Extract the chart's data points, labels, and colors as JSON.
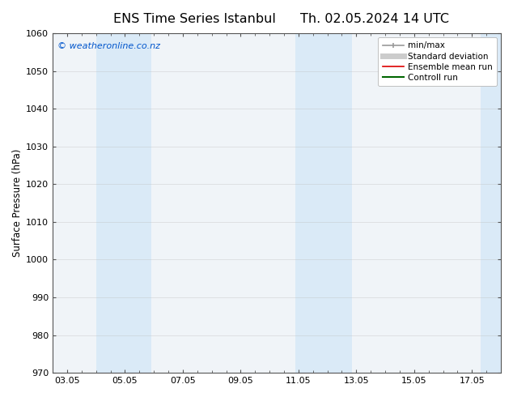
{
  "title_left": "ENS Time Series Istanbul",
  "title_right": "Th. 02.05.2024 14 UTC",
  "ylabel": "Surface Pressure (hPa)",
  "ylim": [
    970,
    1060
  ],
  "yticks": [
    970,
    980,
    990,
    1000,
    1010,
    1020,
    1030,
    1040,
    1050,
    1060
  ],
  "xtick_labels": [
    "03.05",
    "05.05",
    "07.05",
    "09.05",
    "11.05",
    "13.05",
    "15.05",
    "17.05"
  ],
  "xtick_positions": [
    0,
    2,
    4,
    6,
    8,
    10,
    12,
    14
  ],
  "xlim": [
    -0.5,
    15.0
  ],
  "watermark": "© weatheronline.co.nz",
  "watermark_color": "#0055cc",
  "bg_color": "#ffffff",
  "plot_bg_color": "#f0f4f8",
  "shaded_bands": [
    {
      "x_start": 1.0,
      "x_end": 2.9,
      "color": "#daeaf7"
    },
    {
      "x_start": 7.9,
      "x_end": 9.85,
      "color": "#daeaf7"
    },
    {
      "x_start": 14.3,
      "x_end": 15.1,
      "color": "#daeaf7"
    }
  ],
  "legend_entries": [
    {
      "label": "min/max",
      "color": "#aaaaaa",
      "linestyle": "-",
      "linewidth": 1.2
    },
    {
      "label": "Standard deviation",
      "color": "#cccccc",
      "linestyle": "-",
      "linewidth": 5
    },
    {
      "label": "Ensemble mean run",
      "color": "#dd0000",
      "linestyle": "-",
      "linewidth": 1.2
    },
    {
      "label": "Controll run",
      "color": "#006600",
      "linestyle": "-",
      "linewidth": 1.5
    }
  ],
  "grid_color": "#bbbbbb",
  "grid_alpha": 0.4,
  "axis_color": "#555555",
  "tick_color": "#555555",
  "title_fontsize": 11.5,
  "label_fontsize": 8.5,
  "tick_fontsize": 8,
  "legend_fontsize": 7.5
}
